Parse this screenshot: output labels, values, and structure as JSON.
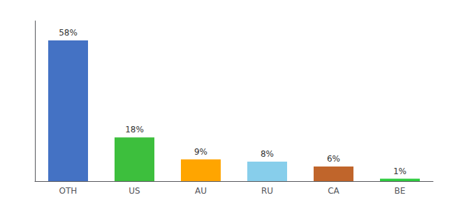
{
  "chart_data": {
    "type": "bar",
    "categories": [
      "OTH",
      "US",
      "AU",
      "RU",
      "CA",
      "BE"
    ],
    "values": [
      58,
      18,
      9,
      8,
      6,
      1
    ],
    "value_labels": [
      "58%",
      "18%",
      "9%",
      "8%",
      "6%",
      "1%"
    ],
    "colors": [
      "#4472C4",
      "#3DBF3D",
      "#FFA500",
      "#87CEEB",
      "#C0652B",
      "#2ECC40"
    ],
    "ylim": [
      0,
      66
    ],
    "grid": false,
    "data_labels": true,
    "tick_labels": "x"
  }
}
